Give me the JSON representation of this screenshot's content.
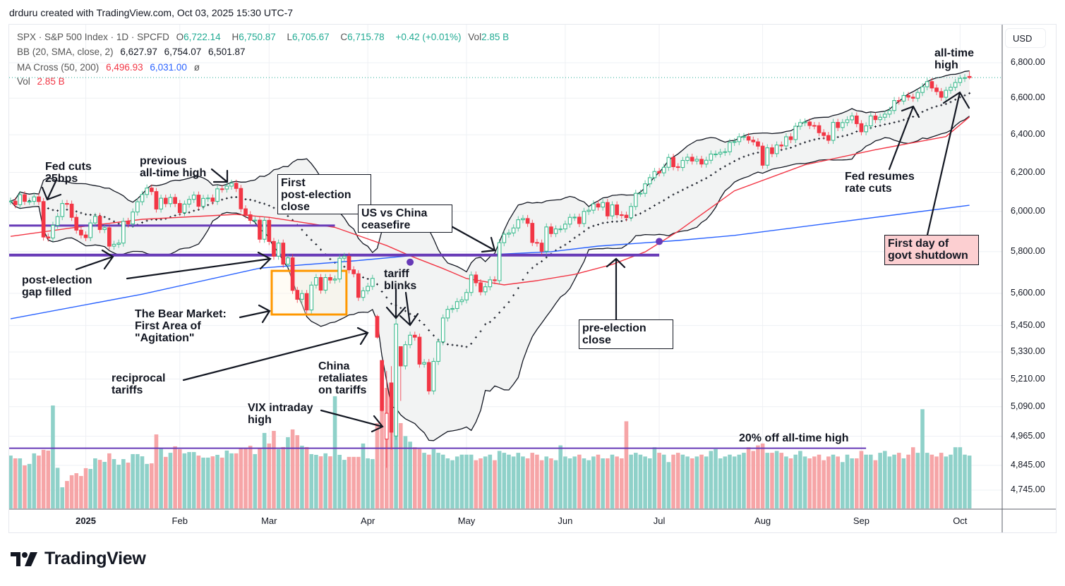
{
  "credit": "drduru created with TradingView.com, Oct 03, 2025 15:30 UTC-7",
  "legend": {
    "symbol": "SPX · S&P 500 Index · 1D · SPCFD",
    "o_label": "O",
    "o": "6,722.14",
    "h_label": "H",
    "h": "6,750.87",
    "l_label": "L",
    "l": "6,705.67",
    "c_label": "C",
    "c": "6,715.78",
    "change": "+0.42 (+0.01%)",
    "vol_label": "Vol",
    "vol": "2.85 B",
    "bb_label": "BB (20, SMA, close, 2)",
    "bb_basis": "6,627.97",
    "bb_upper": "6,754.07",
    "bb_lower": "6,501.87",
    "ma_label": "MA Cross (50, 200)",
    "ma50": "6,496.93",
    "ma200": "6,031.00",
    "ma_symbol": "ø",
    "vol2_label": "Vol",
    "vol2": "2.85 B"
  },
  "price_axis": {
    "currency": "USD",
    "ticks": [
      "6,800.00",
      "6,600.00",
      "6,400.00",
      "6,200.00",
      "6,000.00",
      "5,800.00",
      "5,600.00",
      "5,450.00",
      "5,330.00",
      "5,210.00",
      "5,090.00",
      "4,965.00",
      "4,845.00",
      "4,745.00"
    ],
    "tick_values": [
      6800,
      6600,
      6400,
      6200,
      6000,
      5800,
      5600,
      5450,
      5330,
      5210,
      5090,
      4965,
      4845,
      4745
    ],
    "scale": "log"
  },
  "annotations": {
    "fed_cuts": "Fed cuts\n25bps",
    "prev_ath": "previous\nall-time high",
    "first_post_election": "First\npost-election\nclose",
    "us_china": "US vs China\nceasefire",
    "gap_filled": "post-election\ngap filled",
    "bear_market": "The Bear Market:\nFirst Area of\n\"Agitation\"",
    "reciprocal": "reciprocal\ntariffs",
    "china_retaliates": "China\nretaliates\non tariffs",
    "vix_high": "VIX intraday\nhigh",
    "tariff_blinks": "tariff\nblinks",
    "pre_election": "pre-election\nclose",
    "twenty_off": "20% off all-time high",
    "ath": "all-time\nhigh",
    "fed_resumes": "Fed resumes\nrate cuts",
    "shutdown": "First day of\ngovt shutdown"
  },
  "logo": "TradingView",
  "chart_data": {
    "type": "candlestick",
    "symbol": "SPX",
    "interval": "1D",
    "yscale": "log",
    "ylim": [
      4700,
      6850
    ],
    "grid": true,
    "x_ticks": [
      {
        "label": "2025",
        "date": "2025-01-02"
      },
      {
        "label": "Feb",
        "date": "2025-02-03"
      },
      {
        "label": "Mar",
        "date": "2025-03-03"
      },
      {
        "label": "Apr",
        "date": "2025-04-01"
      },
      {
        "label": "May",
        "date": "2025-05-01"
      },
      {
        "label": "Jun",
        "date": "2025-06-02"
      },
      {
        "label": "Jul",
        "date": "2025-07-01"
      },
      {
        "label": "Aug",
        "date": "2025-08-01"
      },
      {
        "label": "Sep",
        "date": "2025-09-02"
      },
      {
        "label": "Oct",
        "date": "2025-10-01"
      }
    ],
    "trading_days": {
      "2024-12": [
        9,
        10,
        11,
        12,
        13,
        16,
        17,
        18,
        19,
        20,
        23,
        24,
        26,
        27,
        30,
        31
      ],
      "2025-01": [
        2,
        3,
        6,
        7,
        8,
        10,
        13,
        14,
        15,
        16,
        17,
        21,
        22,
        23,
        24,
        27,
        28,
        29,
        30,
        31
      ],
      "2025-02": [
        3,
        4,
        5,
        6,
        7,
        10,
        11,
        12,
        13,
        14,
        18,
        19,
        20,
        21,
        24,
        25,
        26,
        27,
        28
      ],
      "2025-03": [
        3,
        4,
        5,
        6,
        7,
        10,
        11,
        12,
        13,
        14,
        17,
        18,
        19,
        20,
        21,
        24,
        25,
        26,
        27,
        28,
        31
      ],
      "2025-04": [
        1,
        2,
        3,
        4,
        7,
        8,
        9,
        10,
        11,
        14,
        15,
        16,
        17,
        21,
        22,
        23,
        24,
        25,
        28,
        29,
        30
      ],
      "2025-05": [
        1,
        2,
        5,
        6,
        7,
        8,
        9,
        12,
        13,
        14,
        15,
        16,
        19,
        20,
        21,
        22,
        23,
        27,
        28,
        29,
        30
      ],
      "2025-06": [
        2,
        3,
        4,
        5,
        6,
        9,
        10,
        11,
        12,
        13,
        16,
        17,
        18,
        20,
        23,
        24,
        25,
        26,
        27,
        30
      ],
      "2025-07": [
        1,
        2,
        3,
        7,
        8,
        9,
        10,
        11,
        14,
        15,
        16,
        17,
        18,
        21,
        22,
        23,
        24,
        25,
        28,
        29,
        30,
        31
      ],
      "2025-08": [
        1,
        4,
        5,
        6,
        7,
        8,
        11,
        12,
        13,
        14,
        15,
        18,
        19,
        20,
        21,
        22,
        25,
        26,
        27,
        28,
        29
      ],
      "2025-09": [
        2,
        3,
        4,
        5,
        8,
        9,
        10,
        11,
        12,
        15,
        16,
        17,
        18,
        19,
        22,
        23,
        24,
        25,
        26,
        29,
        30
      ],
      "2025-10": [
        1,
        2,
        3
      ]
    },
    "close": [
      6052,
      6034,
      6085,
      6051,
      6051,
      6074,
      6050,
      5872,
      5867,
      5930,
      5974,
      6040,
      6037,
      5970,
      5906,
      5882,
      5869,
      5942,
      5975,
      5909,
      5918,
      5827,
      5836,
      5842,
      5950,
      5937,
      5997,
      6049,
      6086,
      6119,
      6101,
      6012,
      6067,
      6039,
      6071,
      6040,
      5994,
      6037,
      6061,
      6083,
      6026,
      6066,
      6068,
      6051,
      6115,
      6114,
      6129,
      6144,
      6117,
      6013,
      5983,
      5955,
      5956,
      5861,
      5955,
      5850,
      5778,
      5842,
      5739,
      5770,
      5614,
      5572,
      5599,
      5522,
      5639,
      5675,
      5615,
      5675,
      5663,
      5668,
      5768,
      5777,
      5712,
      5693,
      5581,
      5612,
      5633,
      5671,
      5397,
      5074,
      5062,
      4982,
      5457,
      5268,
      5363,
      5406,
      5397,
      5276,
      5283,
      5158,
      5288,
      5376,
      5485,
      5525,
      5529,
      5561,
      5569,
      5604,
      5687,
      5650,
      5607,
      5631,
      5664,
      5660,
      5844,
      5886,
      5892,
      5917,
      5958,
      5964,
      5940,
      5845,
      5842,
      5802,
      5922,
      5889,
      5912,
      5912,
      5936,
      5970,
      5971,
      5939,
      6000,
      6006,
      6038,
      6022,
      6045,
      5977,
      6033,
      5983,
      5981,
      5968,
      6025,
      6092,
      6092,
      6141,
      6173,
      6205,
      6198,
      6227,
      6279,
      6230,
      6226,
      6263,
      6280,
      6260,
      6269,
      6244,
      6264,
      6297,
      6297,
      6306,
      6309,
      6359,
      6363,
      6389,
      6390,
      6371,
      6362,
      6339,
      6238,
      6330,
      6299,
      6345,
      6340,
      6389,
      6374,
      6446,
      6466,
      6469,
      6450,
      6449,
      6411,
      6396,
      6370,
      6467,
      6439,
      6466,
      6481,
      6502,
      6460,
      6416,
      6448,
      6502,
      6482,
      6495,
      6512,
      6532,
      6587,
      6584,
      6615,
      6606,
      6600,
      6632,
      6664,
      6693,
      6657,
      6637,
      6605,
      6644,
      6661,
      6688,
      6711,
      6715,
      6715.78
    ],
    "ohlc_known": {
      "2025-04-03": [
        5492,
        5500,
        5390,
        5397
      ],
      "2025-04-04": [
        5292,
        5292,
        5069,
        5074
      ],
      "2025-04-07": [
        4953,
        5246,
        4835,
        5062
      ],
      "2025-04-08": [
        5193,
        5267,
        4910,
        4982
      ],
      "2025-04-09": [
        4966,
        5481,
        4950,
        5457
      ],
      "2025-04-10": [
        5354,
        5354,
        5115,
        5268
      ],
      "2025-10-03": [
        6722.14,
        6750.87,
        6705.67,
        6715.78
      ]
    },
    "volume_billions": [
      2.85,
      2.7,
      2.7,
      2.32,
      2.4,
      2.97,
      2.85,
      3.16,
      3.12,
      5.55,
      2.19,
      1.14,
      1.48,
      1.79,
      1.9,
      1.75,
      2.17,
      2.13,
      2.7,
      2.62,
      2.51,
      2.97,
      2.66,
      2.36,
      2.66,
      2.47,
      2.93,
      2.93,
      2.81,
      2.4,
      2.43,
      3.99,
      3.27,
      2.78,
      3.0,
      3.35,
      3.19,
      2.97,
      3.04,
      3.04,
      2.85,
      2.74,
      2.74,
      2.81,
      2.89,
      2.74,
      3.12,
      2.97,
      2.97,
      3.27,
      3.24,
      3.38,
      2.93,
      3.27,
      4.07,
      3.5,
      4.18,
      3.19,
      3.31,
      3.84,
      4.26,
      3.95,
      3.38,
      3.31,
      2.93,
      2.89,
      2.81,
      2.97,
      2.81,
      6.05,
      2.89,
      2.62,
      2.78,
      2.78,
      2.78,
      3.5,
      2.7,
      2.66,
      4.6,
      5.3,
      6.5,
      5.0,
      6.6,
      4.6,
      3.9,
      3.6,
      3.3,
      3.2,
      3.0,
      2.9,
      3.2,
      3.0,
      2.9,
      2.7,
      2.6,
      2.8,
      2.9,
      2.9,
      2.9,
      2.6,
      2.7,
      2.8,
      2.9,
      2.6,
      3.1,
      3.0,
      2.9,
      2.8,
      3.0,
      2.8,
      2.7,
      3.0,
      2.9,
      2.6,
      2.8,
      2.7,
      2.6,
      3.4,
      2.8,
      2.7,
      2.8,
      2.9,
      2.7,
      2.6,
      2.8,
      2.9,
      2.7,
      2.7,
      2.9,
      2.8,
      2.7,
      4.7,
      2.9,
      3.0,
      2.9,
      2.8,
      2.7,
      3.3,
      3.0,
      2.9,
      2.5,
      2.9,
      3.0,
      2.9,
      2.8,
      2.7,
      2.8,
      2.9,
      2.8,
      3.1,
      3.2,
      2.7,
      2.8,
      2.9,
      2.8,
      2.9,
      3.0,
      3.3,
      3.1,
      3.4,
      3.5,
      3.0,
      3.0,
      3.1,
      3.0,
      2.8,
      2.7,
      2.9,
      3.1,
      2.8,
      2.7,
      2.8,
      2.9,
      2.6,
      2.8,
      2.9,
      2.8,
      2.5,
      2.9,
      2.7,
      2.7,
      3.1,
      2.9,
      2.9,
      2.6,
      3.0,
      3.1,
      2.8,
      2.9,
      3.0,
      2.7,
      2.9,
      3.3,
      3.0,
      5.35,
      3.0,
      2.9,
      2.8,
      3.0,
      2.8,
      2.9,
      3.3,
      3.3,
      2.9,
      2.85
    ],
    "bollinger": {
      "period": 20,
      "stddev": 2
    },
    "ma50": [
      [
        "2024-12-09",
        5875
      ],
      [
        "2024-12-27",
        5917
      ],
      [
        "2025-01-22",
        5960
      ],
      [
        "2025-02-20",
        5985
      ],
      [
        "2025-03-03",
        5970
      ],
      [
        "2025-03-21",
        5920
      ],
      [
        "2025-04-07",
        5830
      ],
      [
        "2025-04-14",
        5780
      ],
      [
        "2025-04-24",
        5718
      ],
      [
        "2025-05-01",
        5670
      ],
      [
        "2025-05-13",
        5640
      ],
      [
        "2025-05-22",
        5660
      ],
      [
        "2025-06-04",
        5690
      ],
      [
        "2025-06-16",
        5738
      ],
      [
        "2025-06-26",
        5799
      ],
      [
        "2025-07-08",
        5900
      ],
      [
        "2025-07-24",
        6105
      ],
      [
        "2025-08-14",
        6240
      ],
      [
        "2025-09-05",
        6320
      ],
      [
        "2025-09-26",
        6390
      ],
      [
        "2025-10-03",
        6496.93
      ]
    ],
    "ma200": [
      [
        "2024-12-09",
        5481
      ],
      [
        "2025-01-22",
        5596
      ],
      [
        "2025-02-27",
        5720
      ],
      [
        "2025-03-27",
        5755
      ],
      [
        "2025-04-14",
        5780
      ],
      [
        "2025-05-01",
        5780
      ],
      [
        "2025-05-28",
        5800
      ],
      [
        "2025-06-11",
        5827
      ],
      [
        "2025-07-08",
        5855
      ],
      [
        "2025-07-24",
        5880
      ],
      [
        "2025-10-03",
        6031
      ]
    ],
    "ma_crosses": [
      [
        "2025-04-14",
        5749
      ],
      [
        "2025-07-01",
        5850
      ]
    ],
    "levels": [
      {
        "value": 5929,
        "from": "2024-12-09",
        "to": "2025-03-21",
        "width": 3
      },
      {
        "value": 5783,
        "from": "2024-12-09",
        "to": "2025-07-01",
        "width": 4
      },
      {
        "value": 4915,
        "from": "2024-12-09",
        "to": "2025-09-03",
        "width": 2
      }
    ],
    "highlight_box": {
      "from": "2025-03-04",
      "to": "2025-03-25",
      "top": 5707,
      "bottom": 5501
    },
    "colors": {
      "up": "#089981",
      "down": "#f23645",
      "vol_up": "#8fd1c9",
      "vol_down": "#f6a5a7",
      "ma50": "#f23645",
      "ma200": "#2962ff",
      "bb": "#131722",
      "level": "#673ab7",
      "box": "#ff9800",
      "last": "#22ab94"
    }
  }
}
